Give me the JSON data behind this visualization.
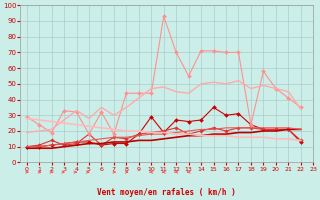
{
  "xlabel": "Vent moyen/en rafales ( km/h )",
  "bg_color": "#cceee8",
  "grid_color": "#aacccc",
  "xlim": [
    -0.5,
    23
  ],
  "ylim": [
    0,
    100
  ],
  "xticks": [
    0,
    1,
    2,
    3,
    4,
    5,
    6,
    7,
    8,
    9,
    10,
    11,
    12,
    13,
    14,
    15,
    16,
    17,
    18,
    19,
    20,
    21,
    22,
    23
  ],
  "yticks": [
    0,
    10,
    20,
    30,
    40,
    50,
    60,
    70,
    80,
    90,
    100
  ],
  "series": [
    {
      "x": [
        0,
        1,
        2,
        3,
        4,
        5,
        6,
        7,
        8,
        9,
        10,
        11,
        12,
        13,
        14,
        15,
        16,
        17,
        18,
        19,
        20,
        21,
        22
      ],
      "y": [
        10,
        10,
        11,
        12,
        13,
        13,
        11,
        12,
        12,
        18,
        29,
        19,
        27,
        26,
        27,
        35,
        30,
        31,
        24,
        21,
        21,
        21,
        13
      ],
      "color": "#cc0000",
      "lw": 0.8,
      "marker": "D",
      "ms": 2.0
    },
    {
      "x": [
        0,
        1,
        2,
        3,
        4,
        5,
        6,
        7,
        8,
        9,
        10,
        11,
        12,
        13,
        14,
        15,
        16,
        17,
        18,
        19,
        20,
        21,
        22
      ],
      "y": [
        10,
        11,
        14,
        11,
        12,
        18,
        11,
        16,
        15,
        18,
        19,
        20,
        22,
        18,
        20,
        22,
        20,
        22,
        22,
        21,
        21,
        21,
        14
      ],
      "color": "#dd3333",
      "lw": 0.8,
      "marker": "D",
      "ms": 1.8
    },
    {
      "x": [
        0,
        1,
        2,
        3,
        4,
        5,
        6,
        7,
        8,
        9,
        10,
        11,
        12,
        13,
        14,
        15,
        16,
        17,
        18,
        19,
        20,
        21,
        22
      ],
      "y": [
        9,
        9,
        9,
        10,
        11,
        12,
        12,
        13,
        13,
        14,
        14,
        15,
        16,
        17,
        17,
        18,
        18,
        19,
        19,
        20,
        20,
        21,
        21
      ],
      "color": "#bb0000",
      "lw": 1.2,
      "marker": null,
      "ms": 0
    },
    {
      "x": [
        0,
        1,
        2,
        3,
        4,
        5,
        6,
        7,
        8,
        9,
        10,
        11,
        12,
        13,
        14,
        15,
        16,
        17,
        18,
        19,
        20,
        21,
        22
      ],
      "y": [
        10,
        10,
        11,
        12,
        13,
        14,
        15,
        16,
        16,
        17,
        18,
        18,
        19,
        20,
        21,
        21,
        22,
        22,
        22,
        22,
        22,
        22,
        21
      ],
      "color": "#ee5555",
      "lw": 0.8,
      "marker": null,
      "ms": 0
    },
    {
      "x": [
        0,
        1,
        2,
        3,
        4,
        5,
        6,
        7,
        8,
        9,
        10,
        11,
        12,
        13,
        14,
        15,
        16,
        17,
        18,
        19,
        20,
        21,
        22
      ],
      "y": [
        29,
        24,
        19,
        33,
        32,
        18,
        32,
        18,
        44,
        44,
        44,
        93,
        70,
        55,
        71,
        71,
        70,
        70,
        24,
        58,
        47,
        41,
        35
      ],
      "color": "#ff9090",
      "lw": 0.8,
      "marker": "D",
      "ms": 2.0
    },
    {
      "x": [
        0,
        1,
        2,
        3,
        4,
        5,
        6,
        7,
        8,
        9,
        10,
        11,
        12,
        13,
        14,
        15,
        16,
        17,
        18,
        19,
        20,
        21,
        22
      ],
      "y": [
        19,
        20,
        21,
        27,
        33,
        28,
        35,
        30,
        35,
        41,
        47,
        48,
        45,
        44,
        50,
        51,
        50,
        52,
        47,
        49,
        47,
        45,
        34
      ],
      "color": "#ffaaaa",
      "lw": 1.0,
      "marker": null,
      "ms": 0
    },
    {
      "x": [
        0,
        1,
        2,
        3,
        4,
        5,
        6,
        7,
        8,
        9,
        10,
        11,
        12,
        13,
        14,
        15,
        16,
        17,
        18,
        19,
        20,
        21,
        22
      ],
      "y": [
        28,
        27,
        26,
        25,
        24,
        23,
        22,
        21,
        20,
        20,
        19,
        19,
        18,
        18,
        17,
        17,
        17,
        16,
        16,
        16,
        15,
        15,
        14
      ],
      "color": "#ffbbbb",
      "lw": 1.2,
      "marker": null,
      "ms": 0
    }
  ],
  "arrow_color": "#ff4444",
  "arrow_angles": [
    0,
    0,
    45,
    60,
    75,
    75,
    90,
    0,
    0,
    90,
    135,
    135,
    135,
    135,
    90,
    90,
    90,
    90,
    90,
    90,
    90,
    90,
    90
  ]
}
